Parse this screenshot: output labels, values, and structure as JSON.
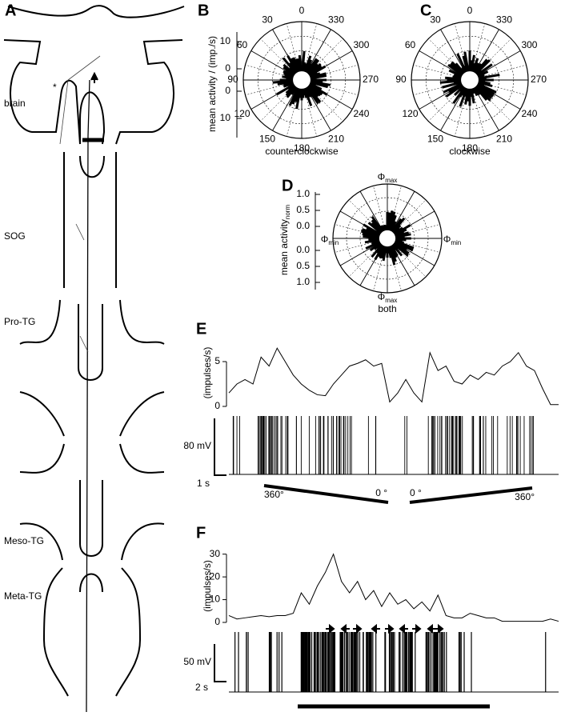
{
  "panels": {
    "A": {
      "letter": "A",
      "regions": [
        "brain",
        "SOG",
        "Pro-TG",
        "Meso-TG",
        "Meta-TG"
      ],
      "asterisk": "*"
    },
    "B": {
      "letter": "B",
      "angles": [
        "0",
        "330",
        "300",
        "270",
        "240",
        "210",
        "180",
        "150",
        "120",
        "90",
        "60",
        "30"
      ],
      "axis_label": "mean activity / (imp./s)",
      "axis_ticks": [
        "10",
        "0",
        "0",
        "10"
      ],
      "caption": "counterclockwise"
    },
    "C": {
      "letter": "C",
      "angles": [
        "0",
        "330",
        "300",
        "270",
        "240",
        "210",
        "180",
        "150",
        "120",
        "90",
        "60",
        "30"
      ],
      "caption": "clockwise"
    },
    "D": {
      "letter": "D",
      "axis_label": "mean activity",
      "axis_label_sub": "norm",
      "axis_ticks": [
        "1.0",
        "0.5",
        "0.0",
        "0.0",
        "0.5",
        "1.0"
      ],
      "phi": "Φ",
      "max": "max",
      "min": "min",
      "caption": "both"
    },
    "E": {
      "letter": "E",
      "scale_mv": "80 mV",
      "scale_s": "1 s",
      "stim": [
        "360°",
        "0 °",
        "0 °",
        "360°"
      ]
    },
    "F": {
      "letter": "F",
      "scale_mv": "50 mV",
      "scale_s": "2 s"
    }
  },
  "chart_data": [
    {
      "type": "line",
      "y_label": "(impulses/s)",
      "color": "#000000",
      "ylim": [
        0,
        7.5
      ],
      "yticks": [
        0,
        5
      ],
      "values": [
        1.5,
        2.5,
        3,
        2.5,
        5.5,
        4.5,
        6.5,
        5,
        3.5,
        2.5,
        1.8,
        1.3,
        1.2,
        2.5,
        3.5,
        4.5,
        4.8,
        5.2,
        4.5,
        4.8,
        0.5,
        1.5,
        3,
        1.5,
        0.5,
        6,
        4,
        4.5,
        2.8,
        2.5,
        3.5,
        3,
        3.8,
        3.5,
        4.5,
        5,
        6,
        4.5,
        4,
        2,
        0.2,
        0.2
      ]
    },
    {
      "type": "line",
      "y_label": "(impulses/s)",
      "color": "#000000",
      "ylim": [
        0,
        32
      ],
      "yticks": [
        0,
        10,
        20,
        30
      ],
      "values": [
        3,
        1.5,
        2,
        2.5,
        3,
        2.5,
        3,
        3,
        4,
        13,
        8,
        16,
        22,
        30,
        18,
        13,
        18,
        10,
        14,
        7,
        13,
        8,
        10,
        6,
        9,
        5,
        12,
        3,
        2,
        2,
        4,
        3,
        2,
        2,
        0.5,
        0.5,
        0.5,
        0.5,
        0.5,
        0.5,
        1.5,
        0.5
      ]
    }
  ]
}
